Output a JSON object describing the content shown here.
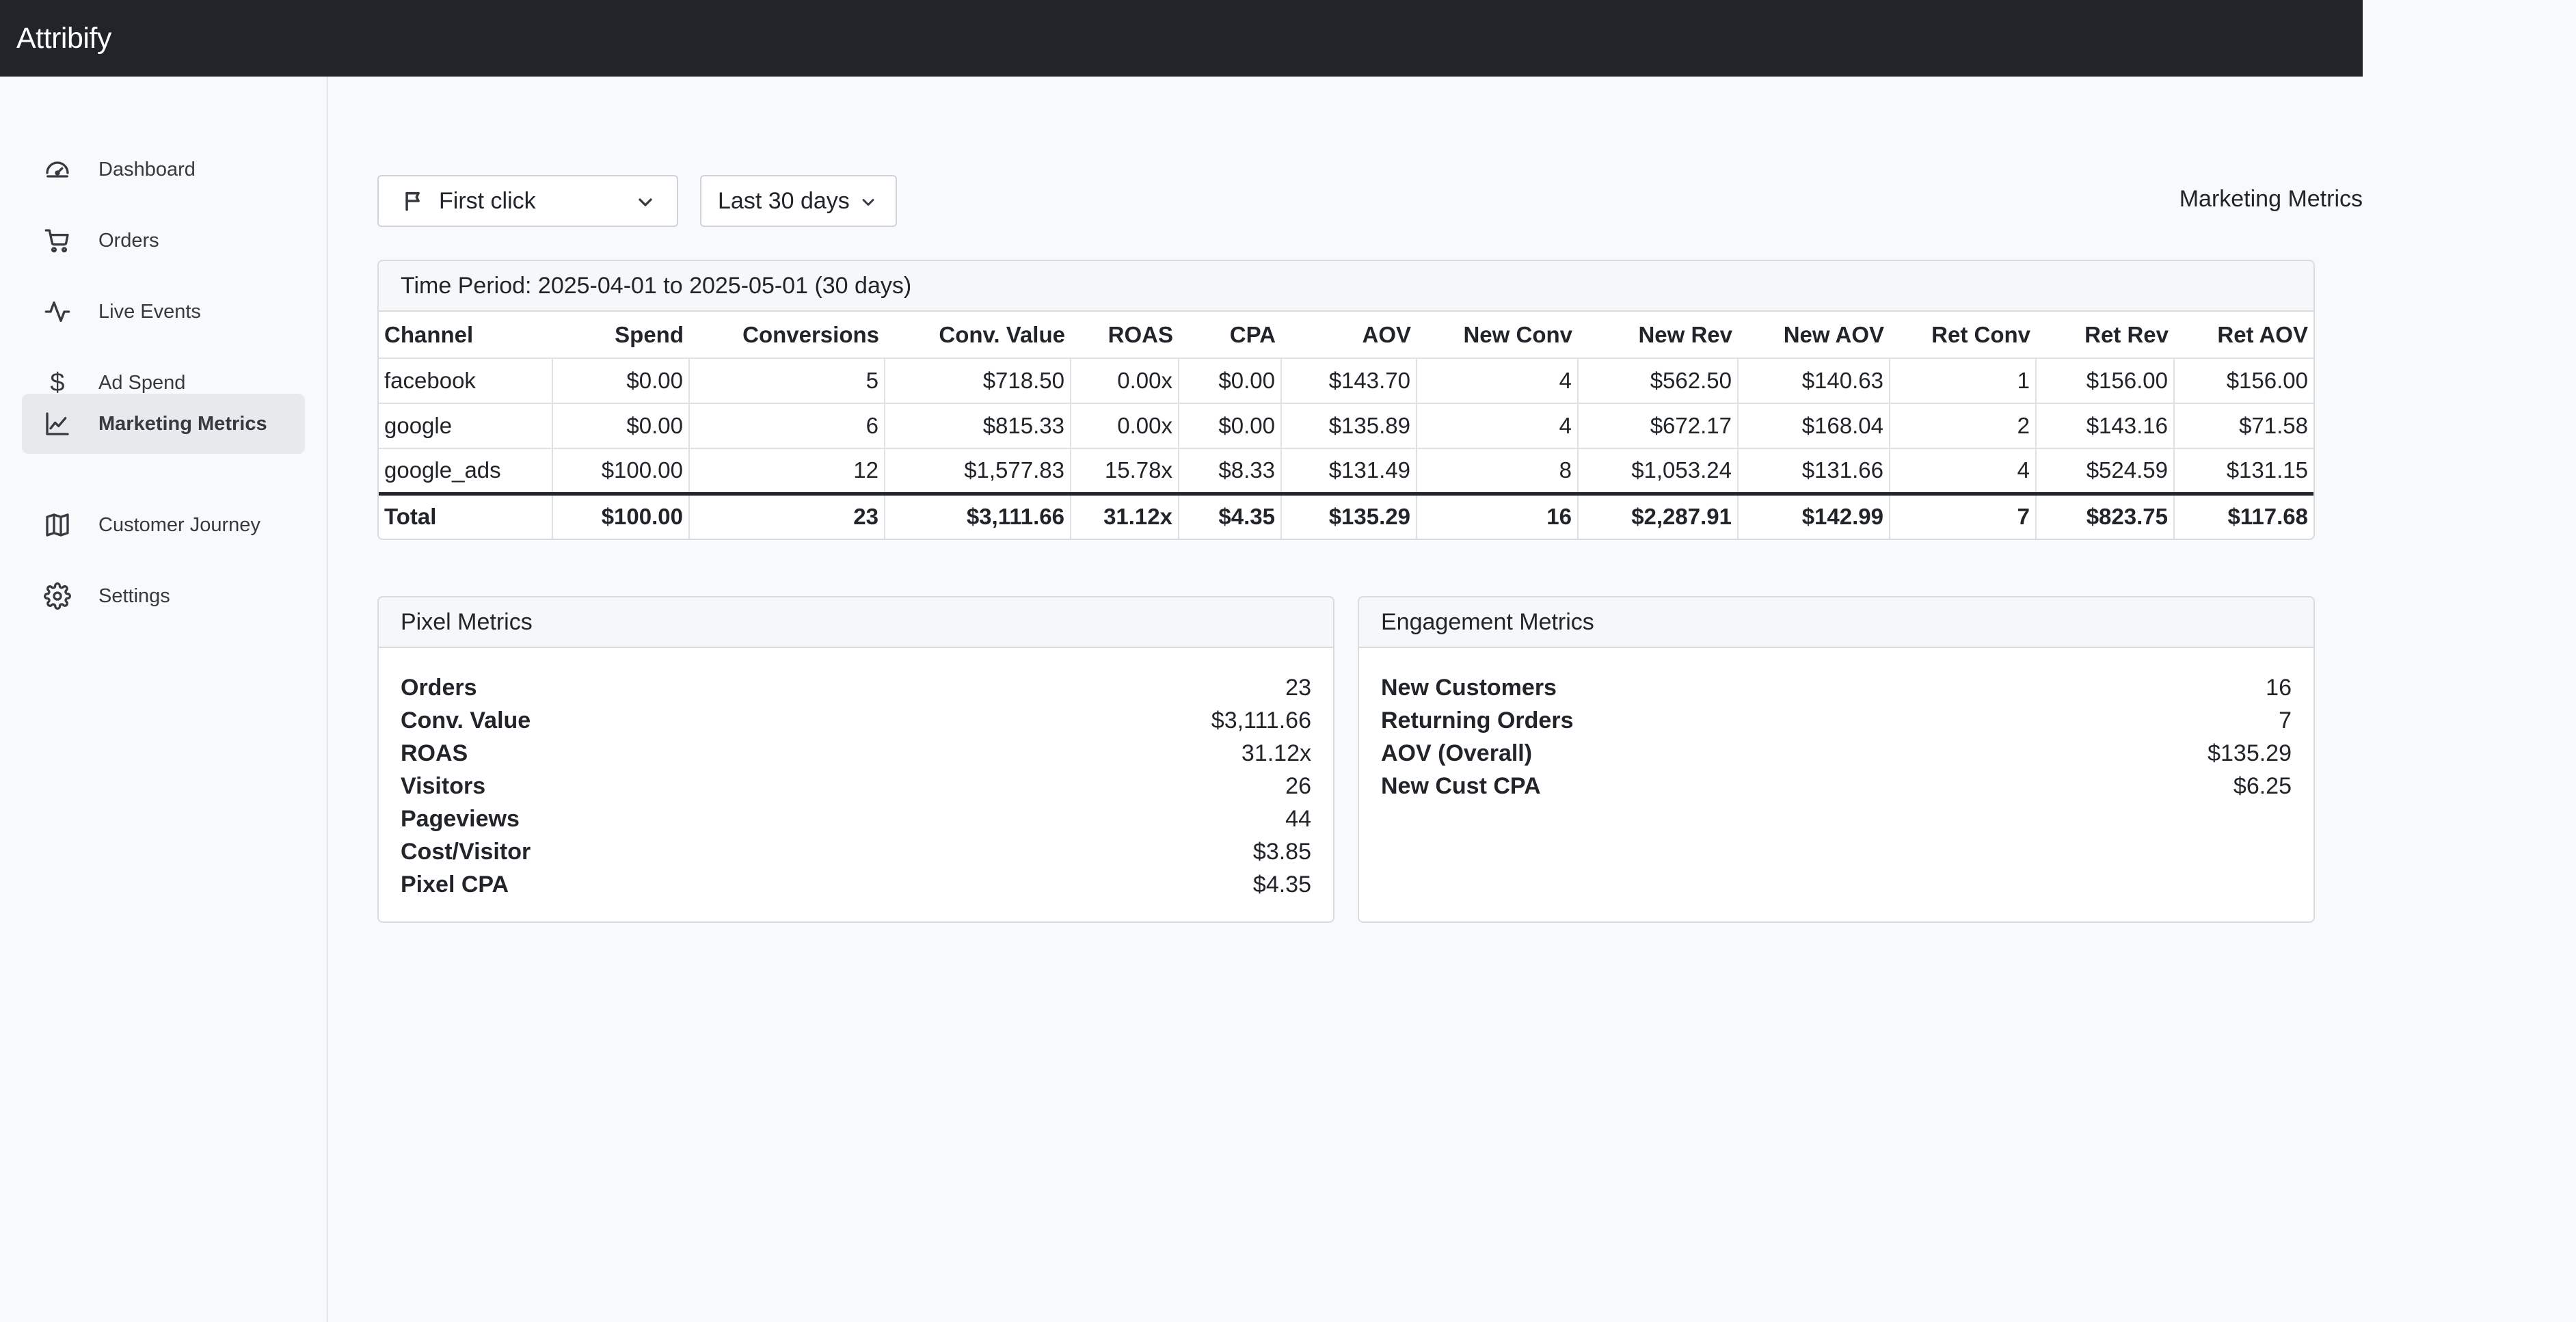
{
  "app": {
    "brand": "Attribify"
  },
  "sidebar": {
    "items": [
      {
        "label": "Dashboard",
        "icon": "speedometer-icon",
        "active": false
      },
      {
        "label": "Orders",
        "icon": "cart-icon",
        "active": false
      },
      {
        "label": "Live Events",
        "icon": "activity-icon",
        "active": false
      },
      {
        "label": "Ad Spend",
        "icon": "dollar-icon",
        "active": false
      },
      {
        "label": "Marketing Metrics",
        "icon": "line-chart-icon",
        "active": true
      },
      {
        "label": "Customer Journey",
        "icon": "map-icon",
        "active": false
      },
      {
        "label": "Settings",
        "icon": "gear-icon",
        "active": false
      }
    ]
  },
  "filters": {
    "attribution": {
      "value": "First click",
      "icon": "flag-icon"
    },
    "range": {
      "value": "Last 30 days"
    }
  },
  "page_title": "Marketing Metrics",
  "channels_card": {
    "header": "Time Period: 2025-04-01 to 2025-05-01 (30 days)",
    "columns": [
      "Channel",
      "Spend",
      "Conversions",
      "Conv. Value",
      "ROAS",
      "CPA",
      "AOV",
      "New Conv",
      "New Rev",
      "New AOV",
      "Ret Conv",
      "Ret Rev",
      "Ret AOV"
    ],
    "rows": [
      [
        "facebook",
        "$0.00",
        "5",
        "$718.50",
        "0.00x",
        "$0.00",
        "$143.70",
        "4",
        "$562.50",
        "$140.63",
        "1",
        "$156.00",
        "$156.00"
      ],
      [
        "google",
        "$0.00",
        "6",
        "$815.33",
        "0.00x",
        "$0.00",
        "$135.89",
        "4",
        "$672.17",
        "$168.04",
        "2",
        "$143.16",
        "$71.58"
      ],
      [
        "google_ads",
        "$100.00",
        "12",
        "$1,577.83",
        "15.78x",
        "$8.33",
        "$131.49",
        "8",
        "$1,053.24",
        "$131.66",
        "4",
        "$524.59",
        "$131.15"
      ]
    ],
    "total": [
      "Total",
      "$100.00",
      "23",
      "$3,111.66",
      "31.12x",
      "$4.35",
      "$135.29",
      "16",
      "$2,287.91",
      "$142.99",
      "7",
      "$823.75",
      "$117.68"
    ]
  },
  "pixel_card": {
    "header": "Pixel Metrics",
    "items": [
      {
        "label": "Orders",
        "value": "23"
      },
      {
        "label": "Conv. Value",
        "value": "$3,111.66"
      },
      {
        "label": "ROAS",
        "value": "31.12x"
      },
      {
        "label": "Visitors",
        "value": "26"
      },
      {
        "label": "Pageviews",
        "value": "44"
      },
      {
        "label": "Cost/Visitor",
        "value": "$3.85"
      },
      {
        "label": "Pixel CPA",
        "value": "$4.35"
      }
    ]
  },
  "engagement_card": {
    "header": "Engagement Metrics",
    "items": [
      {
        "label": "New Customers",
        "value": "16"
      },
      {
        "label": "Returning Orders",
        "value": "7"
      },
      {
        "label": "AOV (Overall)",
        "value": "$135.29"
      },
      {
        "label": "New Cust CPA",
        "value": "$6.25"
      }
    ]
  }
}
